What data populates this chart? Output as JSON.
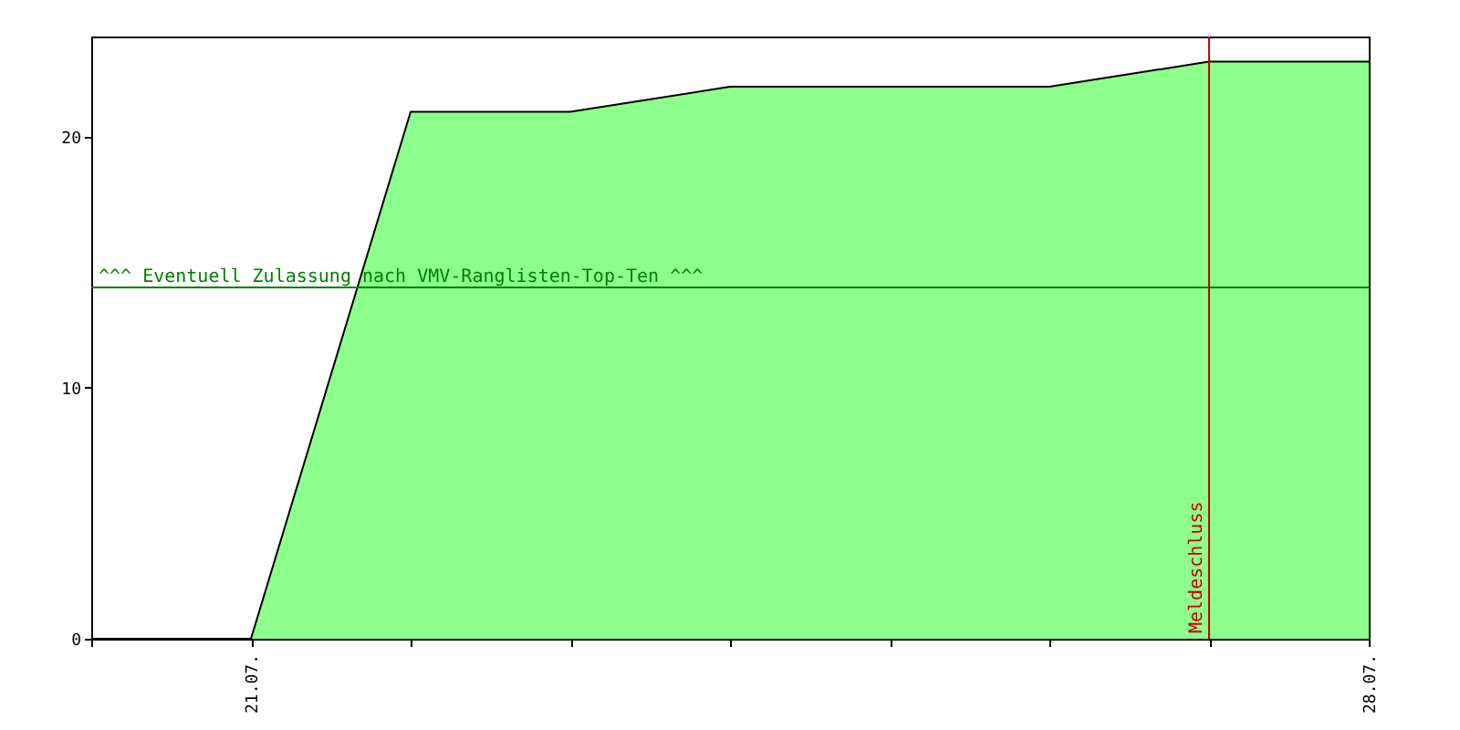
{
  "chart_data": {
    "type": "area",
    "x": [
      "--07-20",
      "--07-21",
      "--07-22",
      "--07-23",
      "--07-24",
      "--07-25",
      "--07-26",
      "--07-27",
      "--07-28"
    ],
    "series": [
      {
        "color": "#8cff8c",
        "values": [
          0,
          0,
          21,
          21,
          22,
          22,
          22,
          23,
          23
        ]
      }
    ],
    "xlim": [
      "--07-20",
      "--07-28"
    ],
    "xticks": [
      {
        "value": "--07-20",
        "label": null
      },
      {
        "value": "--07-21",
        "label": "21.07."
      },
      {
        "value": "--07-22",
        "label": null
      },
      {
        "value": "--07-23",
        "label": null
      },
      {
        "value": "--07-24",
        "label": null
      },
      {
        "value": "--07-25",
        "label": null
      },
      {
        "value": "--07-26",
        "label": null
      },
      {
        "value": "--07-27",
        "label": null
      },
      {
        "value": "--07-28",
        "label": "28.07."
      }
    ],
    "ylim": [
      0,
      24
    ],
    "yticks": [
      0,
      10,
      20
    ],
    "grid": false,
    "ref_lines": [
      {
        "axis": "y",
        "value": 14,
        "label": "^^^ Eventuell Zulassung nach VMV-Ranglisten-Top-Ten ^^^",
        "color": "#008000"
      },
      {
        "axis": "x",
        "value": "--07-27",
        "label": "Meldeschluss",
        "color": "#cc0000"
      }
    ]
  }
}
